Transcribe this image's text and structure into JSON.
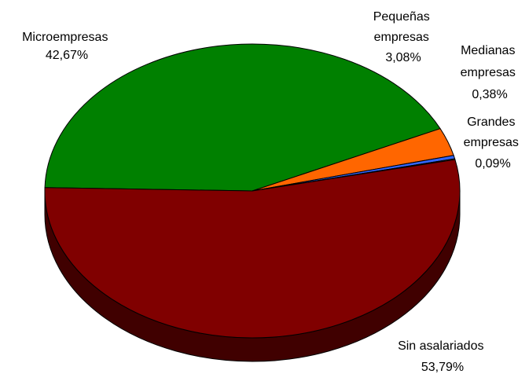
{
  "chart_data": {
    "type": "pie",
    "title": "",
    "slices": [
      {
        "name": "Microempresas",
        "value": 42.67,
        "label": "42,67%",
        "color": "#008000",
        "side_color": "#003f00"
      },
      {
        "name": "Pequeñas empresas",
        "value": 3.08,
        "label": "3,08%",
        "color": "#ff6600",
        "side_color": "#7f3300"
      },
      {
        "name": "Medianas empresas",
        "value": 0.38,
        "label": "0,38%",
        "color": "#3366ff",
        "side_color": "#19337f"
      },
      {
        "name": "Grandes empresas",
        "value": 0.09,
        "label": "0,09%",
        "color": "#ffff00",
        "side_color": "#7f7f00"
      },
      {
        "name": "Sin asalariados",
        "value": 53.79,
        "label": "53,79%",
        "color": "#800000",
        "side_color": "#400000"
      }
    ],
    "label_lines": [
      [
        "Microempresas",
        "42,67%"
      ],
      [
        "Pequeñas",
        "empresas",
        "3,08%"
      ],
      [
        "Medianas",
        "empresas",
        "0,38%"
      ],
      [
        "Grandes",
        "empresas",
        "0,09%"
      ],
      [
        "Sin asalariados",
        "53,79%"
      ]
    ],
    "legend": "none",
    "three_d": true
  }
}
